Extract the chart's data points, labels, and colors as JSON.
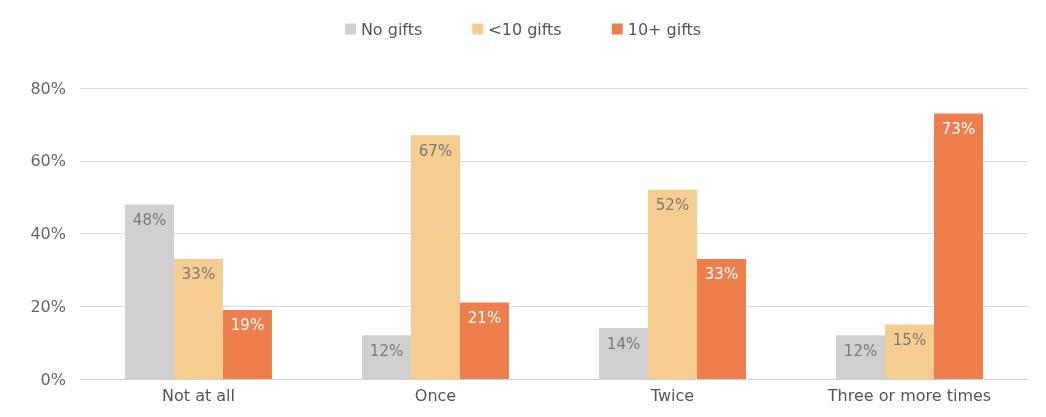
{
  "chart_data": {
    "type": "bar",
    "categories": [
      "Not at all",
      "Once",
      "Twice",
      "Three or more times"
    ],
    "series": [
      {
        "name": "No gifts",
        "color": "#d0d0d0",
        "values": [
          48,
          12,
          14,
          12
        ],
        "value_labels": [
          "48%",
          "12%",
          "14%",
          "12%"
        ]
      },
      {
        "name": "<10 gifts",
        "color": "#f6cd91",
        "values": [
          33,
          67,
          52,
          15
        ],
        "value_labels": [
          "33%",
          "67%",
          "52%",
          "15%"
        ]
      },
      {
        "name": "10+ gifts",
        "color": "#ee7f4c",
        "values": [
          19,
          21,
          33,
          73
        ],
        "value_labels": [
          "19%",
          "21%",
          "33%",
          "73%"
        ]
      }
    ],
    "ylim": [
      0,
      80
    ],
    "yticks": [
      {
        "value": 0,
        "label": "0%"
      },
      {
        "value": 20,
        "label": "20%"
      },
      {
        "value": 40,
        "label": "40%"
      },
      {
        "value": 60,
        "label": "60%"
      },
      {
        "value": 80,
        "label": "80%"
      }
    ],
    "grid": "y",
    "legend": "top"
  }
}
